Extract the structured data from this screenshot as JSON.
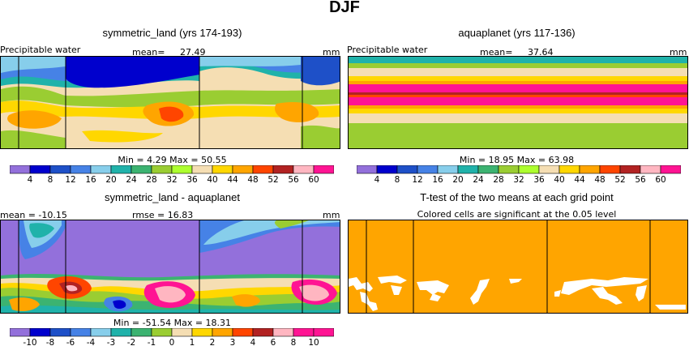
{
  "figure": {
    "title": "DJF"
  },
  "panels": {
    "top_left": {
      "title": "symmetric_land (yrs 174-193)",
      "left_label": "Precipitable water",
      "mean_label": "mean=",
      "mean_value": "27.49",
      "units": "mm",
      "stats": "Min =    4.29  Max =   50.55"
    },
    "top_right": {
      "title": "aquaplanet (yrs 117-136)",
      "left_label": "Precipitable water",
      "mean_label": "mean=",
      "mean_value": "37.64",
      "units": "mm",
      "stats": "Min =   18.95  Max =   63.98"
    },
    "bottom_left": {
      "title": "symmetric_land - aquaplanet",
      "mean_text": "mean = -10.15",
      "rmse_text": "rmse =   16.83",
      "units": "mm",
      "stats": "Min = -51.54  Max =   18.31"
    },
    "bottom_right": {
      "title": "T-test of the two means at each grid point",
      "subtitle": "Colored cells are significant at the 0.05 level"
    }
  },
  "chart_data": [
    {
      "type": "colorbar",
      "name": "precipitable-water-levels",
      "levels": [
        "4",
        "8",
        "12",
        "16",
        "20",
        "24",
        "28",
        "32",
        "36",
        "40",
        "44",
        "48",
        "52",
        "56",
        "60"
      ],
      "colors": [
        "#9370DB",
        "#0000CD",
        "#1E50C8",
        "#4682E6",
        "#87CEEB",
        "#20B2AA",
        "#3CB371",
        "#9ACD32",
        "#ADFF2F",
        "#F5DEB3",
        "#FFD700",
        "#FFA500",
        "#FF4500",
        "#B22222",
        "#FFB6C1",
        "#FF1493"
      ]
    },
    {
      "type": "colorbar",
      "name": "difference-levels",
      "levels": [
        "-10",
        "-8",
        "-6",
        "-4",
        "-3",
        "-2",
        "-1",
        "0",
        "1",
        "2",
        "3",
        "4",
        "6",
        "8",
        "10"
      ],
      "colors": [
        "#9370DB",
        "#0000CD",
        "#1E50C8",
        "#4682E6",
        "#87CEEB",
        "#20B2AA",
        "#3CB371",
        "#9ACD32",
        "#F5DEB3",
        "#FFD700",
        "#FFA500",
        "#FF4500",
        "#B22222",
        "#FFB6C1",
        "#FF1493",
        "#FF1493"
      ]
    },
    {
      "type": "heatmap",
      "name": "aquaplanet-zonal-bands",
      "bands": [
        {
          "label": "24",
          "color": "#9ACD32"
        },
        {
          "label": "36",
          "color": "#F5DEB3"
        },
        {
          "label": "48",
          "color": "#FF4500"
        },
        {
          "label": "56",
          "color": "#FF1493"
        },
        {
          "label": "60",
          "color": "#B22222"
        },
        {
          "label": "56",
          "color": "#FF1493"
        },
        {
          "label": "48",
          "color": "#FFA500"
        },
        {
          "label": "36",
          "color": "#F5DEB3"
        },
        {
          "label": "24",
          "color": "#9ACD32"
        },
        {
          "label": "20",
          "color": "#20B2AA"
        }
      ]
    }
  ]
}
